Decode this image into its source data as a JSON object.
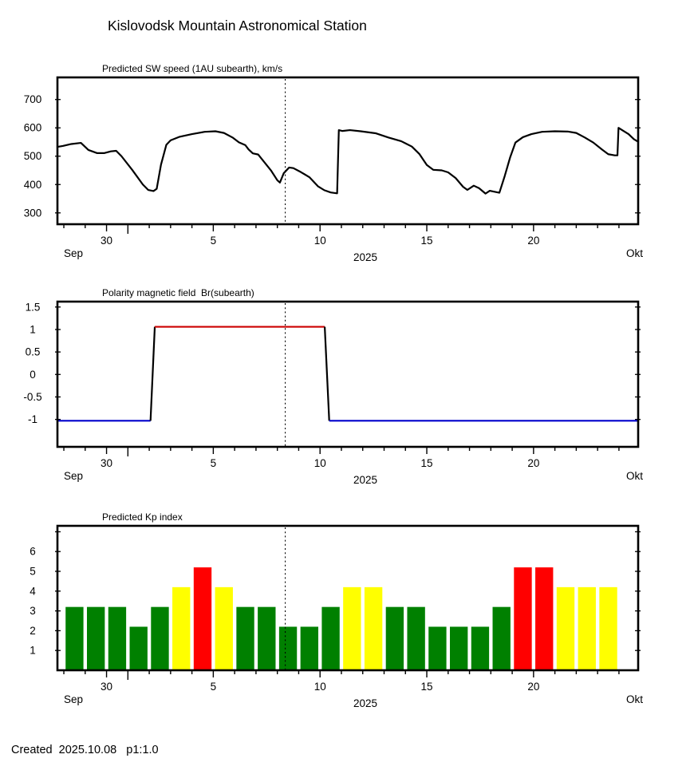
{
  "page": {
    "title": "Kislovodsk Mountain Astronomical Station",
    "footer": "Created  2025.10.08   p1:1.0"
  },
  "time_axis": {
    "start_day": -2.3,
    "end_day": 24.9,
    "labeled_ticks": [
      {
        "day": 0,
        "label": "30"
      },
      {
        "day": 5,
        "label": "5"
      },
      {
        "day": 10,
        "label": "10"
      },
      {
        "day": 15,
        "label": "15"
      },
      {
        "day": 20,
        "label": "20"
      }
    ],
    "month_tick_day": 1,
    "left_month_label": "Sep",
    "right_month_label": "Okt",
    "year_label": "2025",
    "now_day": 8.37
  },
  "chart_data": [
    {
      "id": "sw-speed",
      "type": "line",
      "title": "Predicted SW speed (1AU subearth), km/s",
      "ylabel": "km/s",
      "ylim": [
        260,
        778
      ],
      "yticks": [
        300,
        400,
        500,
        600,
        700
      ],
      "grid": false,
      "series": [
        {
          "name": "Predicted SW speed",
          "color": "#000000",
          "points": [
            [
              -2.3,
              533
            ],
            [
              -2.05,
              536
            ],
            [
              -1.65,
              543
            ],
            [
              -1.2,
              547
            ],
            [
              -0.85,
              522
            ],
            [
              -0.45,
              511
            ],
            [
              -0.1,
              511
            ],
            [
              0.2,
              517
            ],
            [
              0.45,
              519
            ],
            [
              0.7,
              500
            ],
            [
              1.2,
              452
            ],
            [
              1.7,
              400
            ],
            [
              1.95,
              381
            ],
            [
              2.2,
              377
            ],
            [
              2.35,
              385
            ],
            [
              2.55,
              470
            ],
            [
              2.8,
              540
            ],
            [
              3.0,
              556
            ],
            [
              3.4,
              568
            ],
            [
              4.0,
              578
            ],
            [
              4.6,
              586
            ],
            [
              5.1,
              588
            ],
            [
              5.5,
              582
            ],
            [
              5.9,
              566
            ],
            [
              6.2,
              549
            ],
            [
              6.5,
              539
            ],
            [
              6.65,
              524
            ],
            [
              6.85,
              510
            ],
            [
              7.1,
              506
            ],
            [
              7.4,
              478
            ],
            [
              7.7,
              450
            ],
            [
              8.0,
              415
            ],
            [
              8.12,
              407
            ],
            [
              8.3,
              440
            ],
            [
              8.55,
              460
            ],
            [
              8.75,
              458
            ],
            [
              9.1,
              444
            ],
            [
              9.5,
              426
            ],
            [
              9.9,
              394
            ],
            [
              10.2,
              380
            ],
            [
              10.5,
              372
            ],
            [
              10.8,
              369
            ],
            [
              10.88,
              592
            ],
            [
              11.05,
              589
            ],
            [
              11.4,
              592
            ],
            [
              11.9,
              588
            ],
            [
              12.6,
              581
            ],
            [
              13.2,
              566
            ],
            [
              13.8,
              553
            ],
            [
              14.3,
              534
            ],
            [
              14.65,
              508
            ],
            [
              15.0,
              469
            ],
            [
              15.3,
              452
            ],
            [
              15.7,
              450
            ],
            [
              16.0,
              443
            ],
            [
              16.35,
              423
            ],
            [
              16.7,
              392
            ],
            [
              16.9,
              381
            ],
            [
              17.2,
              396
            ],
            [
              17.45,
              387
            ],
            [
              17.75,
              368
            ],
            [
              17.95,
              378
            ],
            [
              18.15,
              375
            ],
            [
              18.4,
              371
            ],
            [
              18.65,
              430
            ],
            [
              18.9,
              495
            ],
            [
              19.15,
              548
            ],
            [
              19.5,
              567
            ],
            [
              19.9,
              578
            ],
            [
              20.4,
              586
            ],
            [
              21.0,
              588
            ],
            [
              21.6,
              587
            ],
            [
              22.0,
              582
            ],
            [
              22.4,
              566
            ],
            [
              22.8,
              548
            ],
            [
              23.2,
              524
            ],
            [
              23.5,
              507
            ],
            [
              23.8,
              503
            ],
            [
              23.93,
              503
            ],
            [
              23.98,
              600
            ],
            [
              24.15,
              592
            ],
            [
              24.45,
              578
            ],
            [
              24.7,
              560
            ],
            [
              24.9,
              551
            ]
          ]
        }
      ]
    },
    {
      "id": "polarity",
      "type": "step-line",
      "title": "Polarity magnetic field  Br(subearth)",
      "ylim": [
        -1.61,
        1.62
      ],
      "yticks": [
        -1,
        -0.5,
        0,
        0.5,
        1,
        1.5
      ],
      "grid": false,
      "segments": [
        {
          "name": "negative-polarity-before",
          "color": "#0000cc",
          "points": [
            [
              -2.3,
              -1.03
            ],
            [
              2.06,
              -1.03
            ]
          ]
        },
        {
          "name": "transition-up",
          "color": "#000000",
          "points": [
            [
              2.06,
              -1.03
            ],
            [
              2.26,
              1.06
            ]
          ]
        },
        {
          "name": "positive-polarity",
          "color": "#cc0000",
          "points": [
            [
              2.26,
              1.06
            ],
            [
              10.22,
              1.06
            ]
          ]
        },
        {
          "name": "transition-down",
          "color": "#000000",
          "points": [
            [
              10.22,
              1.06
            ],
            [
              10.43,
              -1.03
            ]
          ]
        },
        {
          "name": "negative-polarity-after",
          "color": "#0000cc",
          "points": [
            [
              10.43,
              -1.03
            ],
            [
              24.9,
              -1.03
            ]
          ]
        }
      ]
    },
    {
      "id": "kp-index",
      "type": "bar",
      "title": "Predicted Kp index",
      "ylim": [
        0,
        7.3
      ],
      "yticks": [
        1,
        2,
        3,
        4,
        5,
        6
      ],
      "extra_unlabeled_yticks": [
        7
      ],
      "grid": false,
      "bar_colors": {
        "quiet": "#008000",
        "active": "#ffff00",
        "storm": "#ff0000"
      },
      "bars": [
        {
          "start_day": -2,
          "value": 3.2,
          "level": "quiet"
        },
        {
          "start_day": -1,
          "value": 3.2,
          "level": "quiet"
        },
        {
          "start_day": 0,
          "value": 3.2,
          "level": "quiet"
        },
        {
          "start_day": 1,
          "value": 2.2,
          "level": "quiet"
        },
        {
          "start_day": 2,
          "value": 3.2,
          "level": "quiet"
        },
        {
          "start_day": 3,
          "value": 4.2,
          "level": "active"
        },
        {
          "start_day": 4,
          "value": 5.2,
          "level": "storm"
        },
        {
          "start_day": 5,
          "value": 4.2,
          "level": "active"
        },
        {
          "start_day": 6,
          "value": 3.2,
          "level": "quiet"
        },
        {
          "start_day": 7,
          "value": 3.2,
          "level": "quiet"
        },
        {
          "start_day": 8,
          "value": 2.2,
          "level": "quiet"
        },
        {
          "start_day": 9,
          "value": 2.2,
          "level": "quiet"
        },
        {
          "start_day": 10,
          "value": 3.2,
          "level": "quiet"
        },
        {
          "start_day": 11,
          "value": 4.2,
          "level": "active"
        },
        {
          "start_day": 12,
          "value": 4.2,
          "level": "active"
        },
        {
          "start_day": 13,
          "value": 3.2,
          "level": "quiet"
        },
        {
          "start_day": 14,
          "value": 3.2,
          "level": "quiet"
        },
        {
          "start_day": 15,
          "value": 2.2,
          "level": "quiet"
        },
        {
          "start_day": 16,
          "value": 2.2,
          "level": "quiet"
        },
        {
          "start_day": 17,
          "value": 2.2,
          "level": "quiet"
        },
        {
          "start_day": 18,
          "value": 3.2,
          "level": "quiet"
        },
        {
          "start_day": 19,
          "value": 5.2,
          "level": "storm"
        },
        {
          "start_day": 20,
          "value": 5.2,
          "level": "storm"
        },
        {
          "start_day": 21,
          "value": 4.2,
          "level": "active"
        },
        {
          "start_day": 22,
          "value": 4.2,
          "level": "active"
        },
        {
          "start_day": 23,
          "value": 4.2,
          "level": "active"
        }
      ]
    }
  ]
}
